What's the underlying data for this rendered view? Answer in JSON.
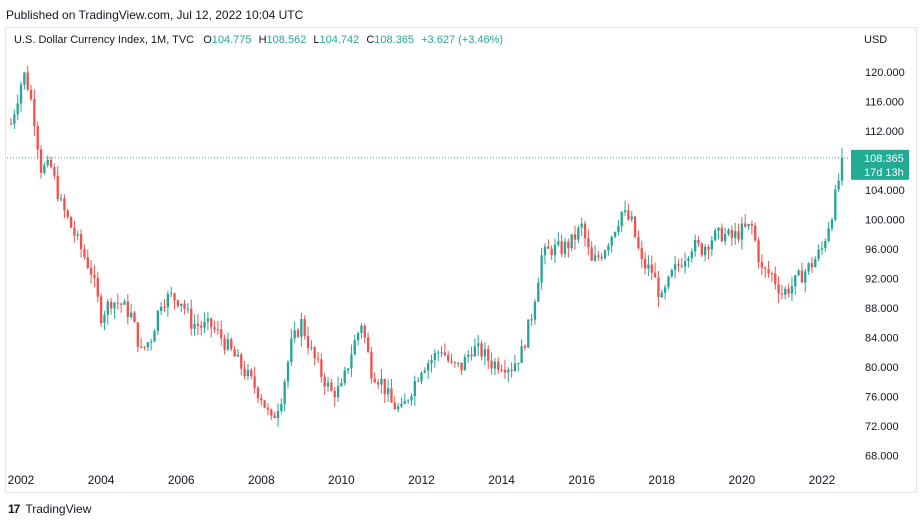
{
  "header": {
    "published": "Published on TradingView.com, Jul 12, 2022 10:04 UTC"
  },
  "legend": {
    "symbol": "U.S. Dollar Currency Index, 1M, TVC",
    "o_label": "O",
    "o_value": "104.775",
    "h_label": "H",
    "h_value": "108.562",
    "l_label": "L",
    "l_value": "104.742",
    "c_label": "C",
    "c_value": "108.365",
    "change": "+3.627 (+3.46%)"
  },
  "currency": "USD",
  "price_tag": {
    "price": "108.365",
    "countdown": "17d 13h"
  },
  "footer": {
    "brand": "TradingView",
    "logo_glyph": "17"
  },
  "colors": {
    "up": "#26a69a",
    "down": "#ef5350",
    "last_price": "#22ab94"
  },
  "chart_data": {
    "type": "candlestick",
    "interval": "1M",
    "x_ticks": [
      "2002",
      "2004",
      "2006",
      "2008",
      "2010",
      "2012",
      "2014",
      "2016",
      "2018",
      "2020",
      "2022"
    ],
    "y_ticks": [
      "68.000",
      "72.000",
      "76.000",
      "80.000",
      "84.000",
      "88.000",
      "92.000",
      "96.000",
      "100.000",
      "104.000",
      "108.000",
      "112.000",
      "116.000",
      "120.000"
    ],
    "ylim": [
      66,
      123
    ],
    "xlim": [
      2001.6,
      2022.9
    ],
    "last_price": 108.365,
    "monthly_close_path": [
      [
        2001.75,
        113
      ],
      [
        2002.0,
        118.5
      ],
      [
        2002.1,
        119.8
      ],
      [
        2002.3,
        115
      ],
      [
        2002.5,
        107
      ],
      [
        2002.75,
        107
      ],
      [
        2003.0,
        102
      ],
      [
        2003.25,
        99
      ],
      [
        2003.5,
        96
      ],
      [
        2003.75,
        93
      ],
      [
        2004.0,
        87
      ],
      [
        2004.25,
        89
      ],
      [
        2004.5,
        88.5
      ],
      [
        2004.75,
        87
      ],
      [
        2005.0,
        82
      ],
      [
        2005.25,
        84
      ],
      [
        2005.5,
        89
      ],
      [
        2005.75,
        89.5
      ],
      [
        2006.0,
        89
      ],
      [
        2006.25,
        86
      ],
      [
        2006.5,
        85.5
      ],
      [
        2006.75,
        85.5
      ],
      [
        2007.0,
        84
      ],
      [
        2007.25,
        82
      ],
      [
        2007.5,
        80
      ],
      [
        2007.75,
        78
      ],
      [
        2008.0,
        76
      ],
      [
        2008.25,
        72.5
      ],
      [
        2008.5,
        76
      ],
      [
        2008.75,
        83
      ],
      [
        2009.0,
        86
      ],
      [
        2009.25,
        82
      ],
      [
        2009.5,
        79
      ],
      [
        2009.75,
        76.5
      ],
      [
        2010.0,
        77
      ],
      [
        2010.25,
        82
      ],
      [
        2010.5,
        86
      ],
      [
        2010.75,
        79.5
      ],
      [
        2011.0,
        78
      ],
      [
        2011.25,
        75
      ],
      [
        2011.5,
        74
      ],
      [
        2011.75,
        77
      ],
      [
        2012.0,
        80
      ],
      [
        2012.25,
        81
      ],
      [
        2012.5,
        82.5
      ],
      [
        2012.75,
        80
      ],
      [
        2013.0,
        80
      ],
      [
        2013.25,
        82.5
      ],
      [
        2013.5,
        82
      ],
      [
        2013.75,
        80.5
      ],
      [
        2014.0,
        80.5
      ],
      [
        2014.25,
        80
      ],
      [
        2014.5,
        82
      ],
      [
        2014.75,
        87
      ],
      [
        2015.0,
        95
      ],
      [
        2015.25,
        96
      ],
      [
        2015.5,
        96
      ],
      [
        2015.75,
        97
      ],
      [
        2016.0,
        99
      ],
      [
        2016.25,
        94
      ],
      [
        2016.5,
        95.5
      ],
      [
        2016.75,
        98
      ],
      [
        2017.0,
        101
      ],
      [
        2017.25,
        99.5
      ],
      [
        2017.5,
        94
      ],
      [
        2017.75,
        93
      ],
      [
        2018.0,
        89
      ],
      [
        2018.25,
        92.5
      ],
      [
        2018.5,
        94.5
      ],
      [
        2018.75,
        96.5
      ],
      [
        2019.0,
        96
      ],
      [
        2019.25,
        97.5
      ],
      [
        2019.5,
        98
      ],
      [
        2019.75,
        97.5
      ],
      [
        2020.0,
        98.5
      ],
      [
        2020.25,
        99
      ],
      [
        2020.5,
        93
      ],
      [
        2020.75,
        92.5
      ],
      [
        2021.0,
        90
      ],
      [
        2021.25,
        91
      ],
      [
        2021.5,
        92.5
      ],
      [
        2021.75,
        94
      ],
      [
        2022.0,
        96
      ],
      [
        2022.25,
        101
      ],
      [
        2022.4,
        104.7
      ],
      [
        2022.5,
        108.4
      ]
    ]
  }
}
